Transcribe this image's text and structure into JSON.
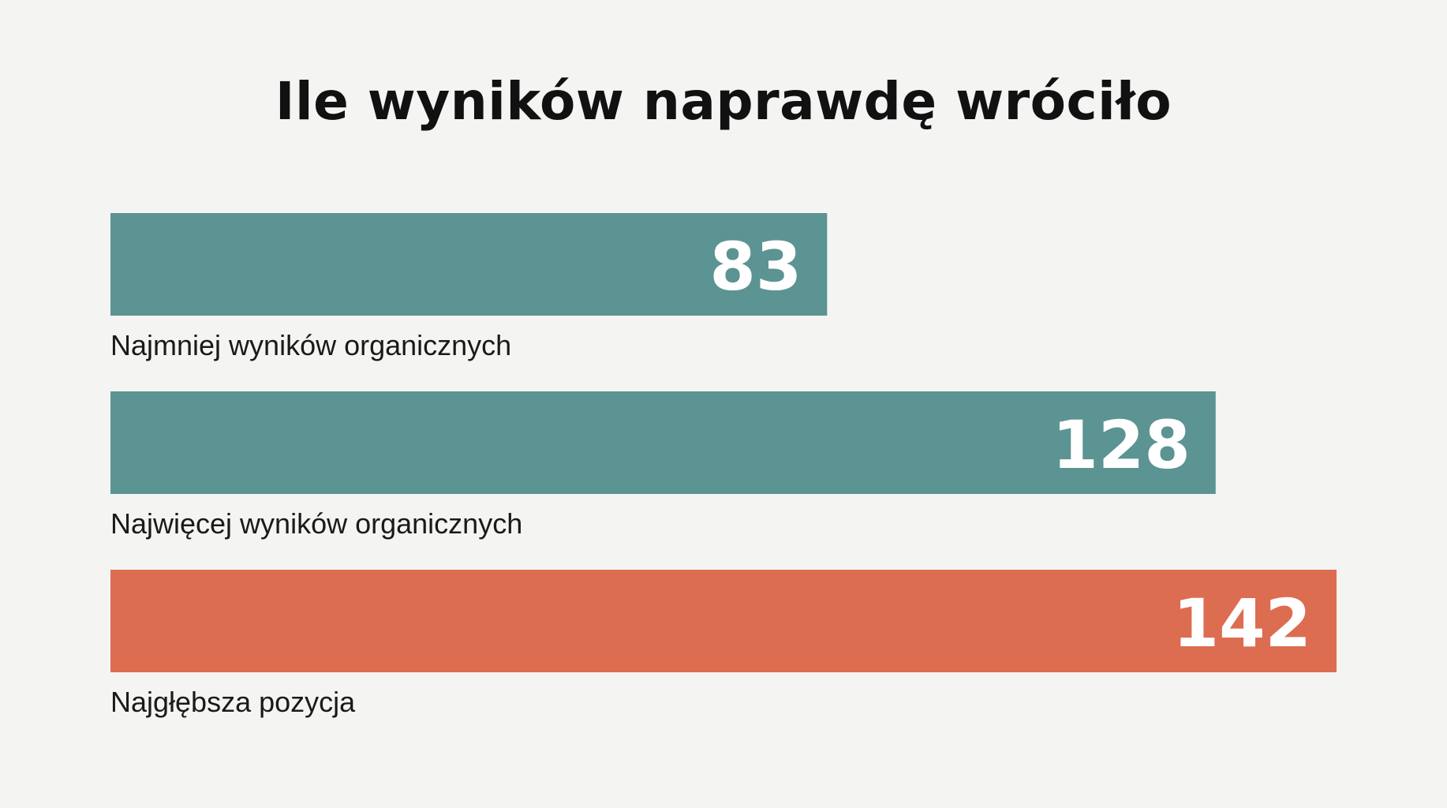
{
  "chart_data": {
    "type": "bar",
    "orientation": "horizontal",
    "title": "Ile wyników naprawdę wróciło",
    "categories": [
      "Najmniej wyników organicznych",
      "Najwięcej wyników organicznych",
      "Najgłębsza pozycja"
    ],
    "values": [
      83,
      128,
      142
    ],
    "data_labels": [
      "83",
      "128",
      "142"
    ],
    "bar_colors": [
      "#5b9492",
      "#5b9492",
      "#dd6d51"
    ],
    "xlim": [
      0,
      142
    ],
    "grid": false,
    "legend": "none"
  }
}
